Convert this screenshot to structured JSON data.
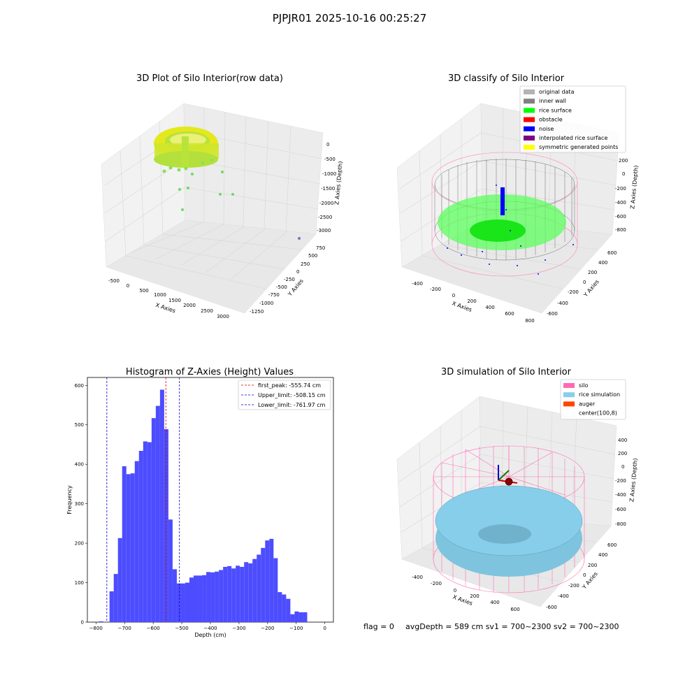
{
  "figure_title": "PJPJR01 2025-10-16 00:25:27",
  "colors": {
    "histogram_bar": "#4d4dff",
    "peak_line": "#cc0000",
    "limit_line": "#0000cc",
    "grid": "#d8d8d8",
    "pane": "#f2f2f2",
    "silo_wire": "#ff6eb4",
    "rice_sim": "#87ceeb",
    "rice_surface": "#00ff00",
    "noise": "#0000ff",
    "raw_data_yellow": "#e4e81c",
    "raw_data_green": "#6ed86a"
  },
  "panels": {
    "raw": {
      "title": "3D Plot of Silo Interior(row data)",
      "xlabel": "X Axies",
      "ylabel": "Y Axies",
      "zlabel": "Z Axies (Depth)",
      "x_ticks": [
        "-500",
        "0",
        "500",
        "1000",
        "1500",
        "2000",
        "2500",
        "3000"
      ],
      "y_ticks": [
        "750",
        "500",
        "250",
        "0",
        "-250",
        "-500",
        "-750",
        "-1000",
        "-1250"
      ],
      "z_ticks": [
        "0",
        "-500",
        "-1000",
        "-1500",
        "-2000",
        "-2500",
        "-3000"
      ]
    },
    "classify": {
      "title": "3D classify of Silo Interior",
      "xlabel": "X Axies",
      "ylabel": "Y Axies",
      "zlabel": "Z Axies (Depth)",
      "x_ticks": [
        "-400",
        "-200",
        "0",
        "200",
        "400",
        "600",
        "800"
      ],
      "y_ticks": [
        "600",
        "400",
        "200",
        "0",
        "-200",
        "-400",
        "-600"
      ],
      "z_ticks": [
        "200",
        "0",
        "-200",
        "-400",
        "-600",
        "-800"
      ],
      "legend": [
        {
          "label": "original data",
          "color": "#b4b4b4"
        },
        {
          "label": "inner wall",
          "color": "#808080"
        },
        {
          "label": "rice surface",
          "color": "#00ff00"
        },
        {
          "label": "obstacle",
          "color": "#ff0000"
        },
        {
          "label": "noise",
          "color": "#0000ff"
        },
        {
          "label": "interpolated rice surface",
          "color": "#800080"
        },
        {
          "label": "symmetric generated points",
          "color": "#ffff00"
        }
      ]
    },
    "simulation": {
      "title": "3D simulation of Silo Interior",
      "xlabel": "X Axies",
      "ylabel": "Y Axies",
      "zlabel": "Z Axies (Depth)",
      "x_ticks": [
        "-400",
        "-200",
        "0",
        "200",
        "400",
        "600"
      ],
      "y_ticks": [
        "600",
        "400",
        "200",
        "0",
        "-200",
        "-400",
        "-600"
      ],
      "z_ticks": [
        "400",
        "200",
        "0",
        "-200",
        "-400",
        "-600",
        "-800"
      ],
      "legend": [
        {
          "label": "silo",
          "color": "#ff69b4"
        },
        {
          "label": "rice simulation",
          "color": "#87ceeb"
        },
        {
          "label": "auger",
          "color": "#ff4500"
        },
        {
          "label": "center(100,8)",
          "color": ""
        }
      ]
    }
  },
  "chart_data": {
    "type": "bar",
    "title": "Histogram of Z-Axies (Height) Values",
    "xlabel": "Depth (cm)",
    "ylabel": "Frequency",
    "xlim": [
      -830,
      30
    ],
    "ylim": [
      0,
      620
    ],
    "x_ticks": [
      -800,
      -700,
      -600,
      -500,
      -400,
      -300,
      -200,
      -100,
      0
    ],
    "y_ticks": [
      0,
      100,
      200,
      300,
      400,
      500,
      600
    ],
    "bin_width": 14.7,
    "bin_starts": [
      -789.5,
      -752.6,
      -737.9,
      -723.2,
      -708.5,
      -693.8,
      -679.1,
      -664.4,
      -649.7,
      -635.0,
      -620.3,
      -605.6,
      -590.9,
      -576.2,
      -561.5,
      -546.8,
      -532.1,
      -517.4,
      -502.7,
      -488.0,
      -473.3,
      -458.6,
      -443.9,
      -429.2,
      -414.5,
      -399.8,
      -385.1,
      -370.4,
      -355.7,
      -341.0,
      -326.3,
      -311.6,
      -296.9,
      -282.2,
      -267.5,
      -252.8,
      -238.1,
      -223.4,
      -208.7,
      -194.0,
      -179.3,
      -164.6,
      -149.9,
      -135.2,
      -120.5,
      -105.8,
      -91.1,
      -76.4,
      -61.7,
      -47.0,
      -32.3,
      -17.6
    ],
    "values": [
      2,
      78,
      122,
      213,
      395,
      375,
      377,
      408,
      434,
      458,
      456,
      517,
      548,
      589,
      489,
      260,
      134,
      98,
      98,
      100,
      113,
      118,
      118,
      119,
      127,
      126,
      128,
      132,
      140,
      142,
      136,
      143,
      140,
      152,
      149,
      160,
      171,
      188,
      207,
      211,
      162,
      76,
      70,
      59,
      20,
      27,
      25,
      25,
      0,
      0,
      0,
      0
    ],
    "vlines": [
      {
        "label": "first_peak: -555.74 cm",
        "x": -555.74,
        "color": "#cc0000"
      },
      {
        "label": "Upper_limit: -508.15 cm",
        "x": -508.15,
        "color": "#0000cc"
      },
      {
        "label": "Lower_limit: -761.97 cm",
        "x": -761.97,
        "color": "#0000cc"
      }
    ]
  },
  "footer": {
    "flag": "flag = 0",
    "stats": "avgDepth = 589 cm  sv1 = 700~2300  sv2 = 700~2300"
  }
}
